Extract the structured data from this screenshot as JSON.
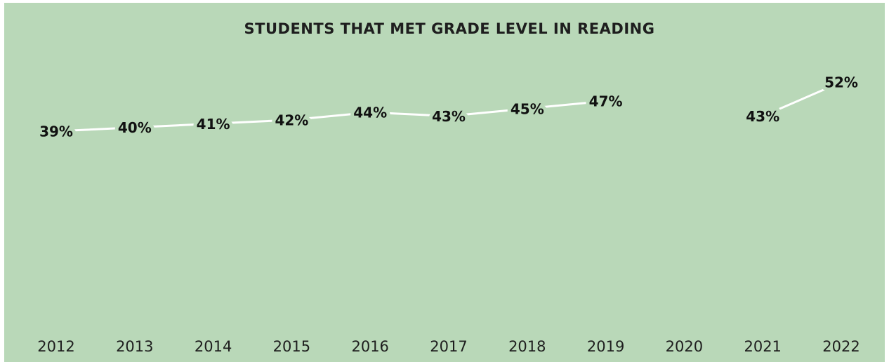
{
  "chart_data": {
    "type": "line",
    "title": "STUDENTS THAT MET GRADE LEVEL IN READING",
    "categories": [
      "2012",
      "2013",
      "2014",
      "2015",
      "2016",
      "2017",
      "2018",
      "2019",
      "2020",
      "2021",
      "2022"
    ],
    "series": [
      {
        "name": "Reading",
        "color": "#ffffff",
        "values": [
          39,
          40,
          41,
          42,
          44,
          43,
          45,
          47,
          null,
          43,
          52
        ],
        "value_labels": [
          "39%",
          "40%",
          "41%",
          "42%",
          "44%",
          "43%",
          "45%",
          "47%",
          null,
          "43%",
          "52%"
        ]
      }
    ],
    "ylim": [
      0,
      60
    ],
    "drop_lines": true
  }
}
